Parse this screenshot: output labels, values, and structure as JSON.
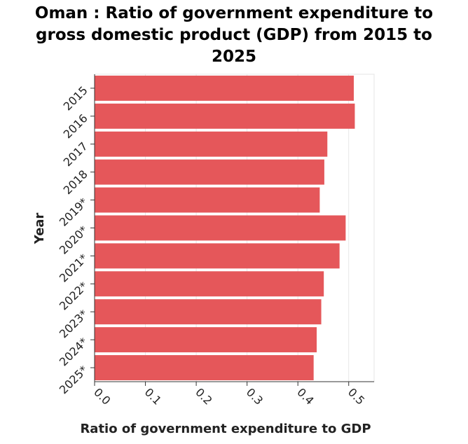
{
  "chart_data": {
    "type": "bar",
    "orientation": "horizontal",
    "title_lines": [
      "Oman : Ratio of government expenditure to",
      "gross domestic product (GDP) from 2015 to",
      "2025"
    ],
    "xlabel": "Ratio of government expenditure to GDP",
    "ylabel": "Year",
    "categories": [
      "2015",
      "2016",
      "2017",
      "2018",
      "2019*",
      "2020*",
      "2021*",
      "2022*",
      "2023*",
      "2024*",
      "2025*"
    ],
    "values": [
      0.51,
      0.512,
      0.458,
      0.452,
      0.443,
      0.494,
      0.482,
      0.451,
      0.446,
      0.437,
      0.431
    ],
    "xlim": [
      0,
      0.55
    ],
    "xticks": [
      "0.0",
      "0.1",
      "0.2",
      "0.3",
      "0.4",
      "0.5"
    ],
    "xtick_values": [
      0,
      0.1,
      0.2,
      0.3,
      0.4,
      0.5
    ],
    "grid": true,
    "legend": "none",
    "colors": {
      "bar": "#e5575a",
      "grid": "#e6e6e6",
      "axis": "#333333"
    }
  }
}
